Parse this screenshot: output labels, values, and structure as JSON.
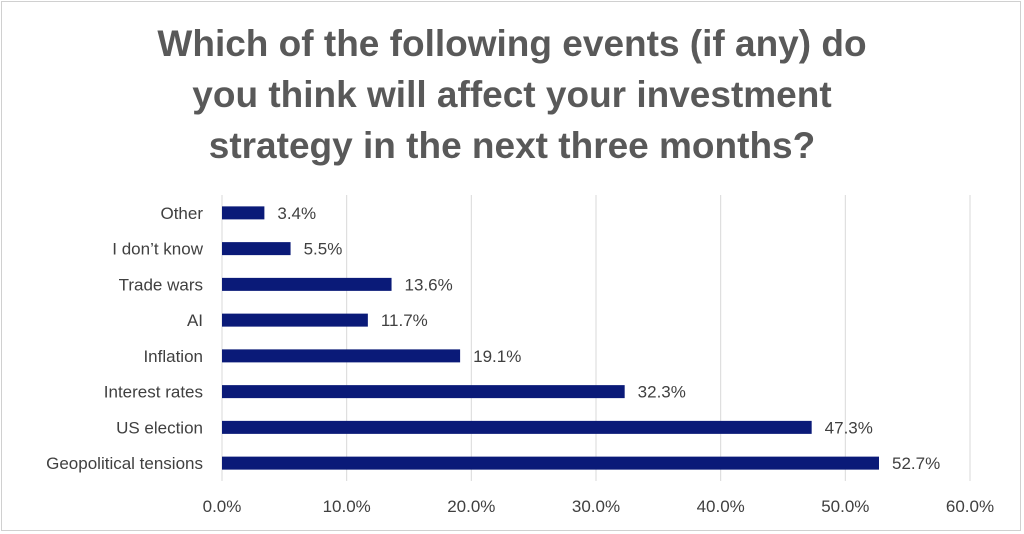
{
  "chart_data": {
    "type": "bar",
    "orientation": "horizontal",
    "title_lines": [
      "Which of the following events (if any) do",
      "you think will affect your investment",
      "strategy in the next three months?"
    ],
    "categories": [
      "Other",
      "I don’t know",
      "Trade wars",
      "AI",
      "Inflation",
      "Interest rates",
      "US election",
      "Geopolitical tensions"
    ],
    "values": [
      3.4,
      5.5,
      13.6,
      11.7,
      19.1,
      32.3,
      47.3,
      52.7
    ],
    "value_labels": [
      "3.4%",
      "5.5%",
      "13.6%",
      "11.7%",
      "19.1%",
      "32.3%",
      "47.3%",
      "52.7%"
    ],
    "x_ticks": [
      0,
      10,
      20,
      30,
      40,
      50,
      60
    ],
    "x_tick_labels": [
      "0.0%",
      "10.0%",
      "20.0%",
      "30.0%",
      "40.0%",
      "50.0%",
      "60.0%"
    ],
    "xlim": [
      0,
      60
    ],
    "grid": true,
    "legend": "none",
    "colors": {
      "bar": "#0a1a78",
      "grid": "#d9d9d9",
      "text": "#404040",
      "title": "#595959"
    }
  }
}
